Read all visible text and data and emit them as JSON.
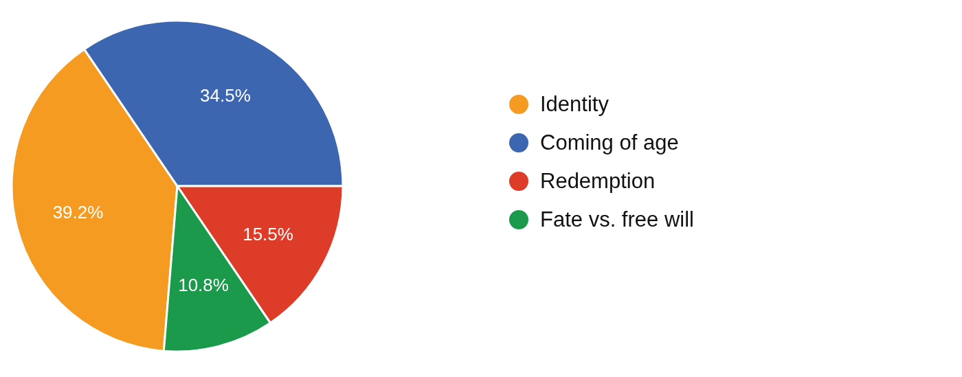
{
  "chart_data": {
    "type": "pie",
    "categories": [
      "Identity",
      "Coming of age",
      "Redemption",
      "Fate vs. free will"
    ],
    "values": [
      39.2,
      34.5,
      15.5,
      10.8
    ],
    "colors": [
      "#f59b22",
      "#3d66b0",
      "#dc3c28",
      "#1a9a4a"
    ],
    "value_labels": [
      "39.2%",
      "34.5%",
      "15.5%",
      "10.8%"
    ],
    "legend": "right"
  }
}
